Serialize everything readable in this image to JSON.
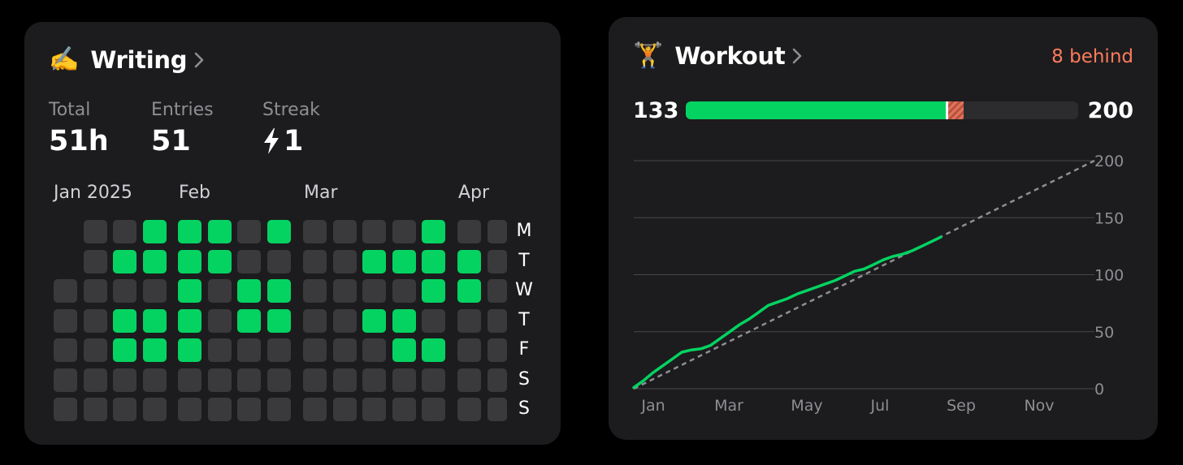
{
  "writing": {
    "emoji": "✍️",
    "title": "Writing",
    "stats": [
      {
        "label": "Total",
        "value": "51h"
      },
      {
        "label": "Entries",
        "value": "51"
      },
      {
        "label": "Streak",
        "value": "1",
        "icon": "lightning-bolt-icon"
      }
    ],
    "months": [
      "Jan 2025",
      "Feb",
      "Mar",
      "Apr"
    ],
    "days": [
      "M",
      "T",
      "W",
      "T",
      "F",
      "S",
      "S"
    ],
    "heatmap": [
      [
        null,
        0,
        0,
        1,
        1,
        1,
        0,
        1,
        0,
        0,
        0,
        0,
        1,
        0,
        0
      ],
      [
        null,
        0,
        1,
        1,
        1,
        1,
        0,
        0,
        0,
        0,
        1,
        1,
        1,
        1,
        0
      ],
      [
        0,
        0,
        0,
        0,
        1,
        0,
        1,
        1,
        0,
        0,
        0,
        0,
        1,
        1,
        0
      ],
      [
        0,
        0,
        1,
        1,
        1,
        0,
        1,
        1,
        0,
        0,
        1,
        1,
        0,
        0,
        0
      ],
      [
        0,
        0,
        1,
        1,
        1,
        0,
        0,
        0,
        0,
        0,
        0,
        1,
        1,
        0,
        0
      ],
      [
        0,
        0,
        0,
        0,
        0,
        0,
        0,
        0,
        0,
        0,
        0,
        0,
        0,
        0,
        0
      ],
      [
        0,
        0,
        0,
        0,
        0,
        0,
        0,
        0,
        0,
        0,
        0,
        0,
        0,
        0,
        0
      ]
    ]
  },
  "workout": {
    "emoji": "🏋️",
    "title": "Workout",
    "status": "8 behind",
    "current": "133",
    "goal": "200",
    "progress": {
      "done_fraction": 0.665,
      "behind_fraction": 0.04
    },
    "colors": {
      "accent": "#04d361",
      "behind": "#ff7a5c",
      "target_line": "#8e8e93"
    },
    "chart_data": {
      "type": "line",
      "xlabels": [
        "Jan",
        "Mar",
        "May",
        "Jul",
        "Sep",
        "Nov"
      ],
      "yticks": [
        0,
        50,
        100,
        150,
        200
      ],
      "ylim": [
        0,
        200
      ],
      "xlim": [
        0,
        12
      ],
      "grid": true,
      "series": [
        {
          "style": "solid",
          "x": [
            0,
            0.25,
            0.5,
            0.75,
            1.0,
            1.25,
            1.5,
            1.75,
            2.0,
            2.25,
            2.5,
            2.75,
            3.0,
            3.25,
            3.5,
            3.75,
            4.0,
            4.25,
            4.5,
            4.75,
            5.0,
            5.25,
            5.5,
            5.75,
            6.0,
            6.25,
            6.5,
            6.75,
            7.0,
            7.25,
            7.5,
            7.75,
            8.0
          ],
          "y": [
            1,
            7,
            14,
            20,
            26,
            32,
            34,
            35,
            38,
            44,
            50,
            56,
            61,
            67,
            73,
            76,
            79,
            83,
            86,
            89,
            92,
            95,
            99,
            103,
            105,
            109,
            113,
            116,
            118,
            121,
            125,
            129,
            133
          ]
        },
        {
          "style": "dashed",
          "x": [
            0,
            12
          ],
          "y": [
            0,
            200
          ]
        }
      ]
    }
  }
}
